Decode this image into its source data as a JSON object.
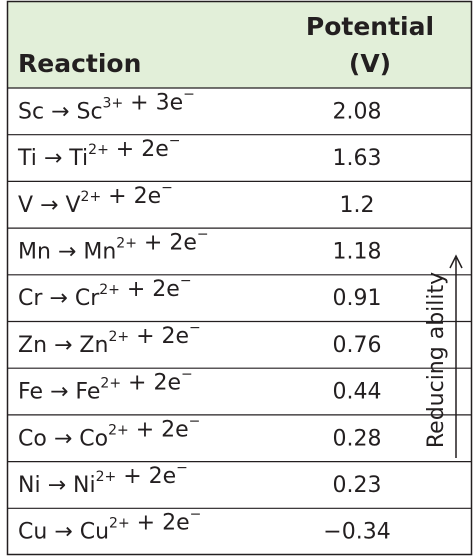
{
  "header": {
    "reaction": "Reaction",
    "potential": [
      "Potential",
      "(V)"
    ]
  },
  "side_label": "Reducing ability",
  "table": {
    "rows": [
      {
        "reaction": [
          {
            "text": "Sc → Sc"
          },
          {
            "sup": "3+"
          },
          {
            "text": " + 3e"
          },
          {
            "sup": "−"
          }
        ],
        "potential": "2.08"
      },
      {
        "reaction": [
          {
            "text": "Ti → Ti"
          },
          {
            "sup": "2+"
          },
          {
            "text": " + 2e"
          },
          {
            "sup": "−"
          }
        ],
        "potential": "1.63"
      },
      {
        "reaction": [
          {
            "text": "V → V"
          },
          {
            "sup": "2+"
          },
          {
            "text": " + 2e"
          },
          {
            "sup": "−"
          }
        ],
        "potential": "1.2"
      },
      {
        "reaction": [
          {
            "text": "Mn → Mn"
          },
          {
            "sup": "2+"
          },
          {
            "text": " + 2e"
          },
          {
            "sup": "−"
          }
        ],
        "potential": "1.18"
      },
      {
        "reaction": [
          {
            "text": "Cr → Cr"
          },
          {
            "sup": "2+"
          },
          {
            "text": " + 2e"
          },
          {
            "sup": "−"
          }
        ],
        "potential": "0.91"
      },
      {
        "reaction": [
          {
            "text": "Zn → Zn"
          },
          {
            "sup": "2+"
          },
          {
            "text": " + 2e"
          },
          {
            "sup": "−"
          }
        ],
        "potential": "0.76"
      },
      {
        "reaction": [
          {
            "text": "Fe → Fe"
          },
          {
            "sup": "2+"
          },
          {
            "text": " + 2e"
          },
          {
            "sup": "−"
          }
        ],
        "potential": "0.44"
      },
      {
        "reaction": [
          {
            "text": "Co → Co"
          },
          {
            "sup": "2+"
          },
          {
            "text": " + 2e"
          },
          {
            "sup": "−"
          }
        ],
        "potential": "0.28"
      },
      {
        "reaction": [
          {
            "text": "Ni → Ni"
          },
          {
            "sup": "2+"
          },
          {
            "text": " + 2e"
          },
          {
            "sup": "−"
          }
        ],
        "potential": "0.23"
      },
      {
        "reaction": [
          {
            "text": "Cu → Cu"
          },
          {
            "sup": "2+"
          },
          {
            "text": " + 2e"
          },
          {
            "sup": "−"
          }
        ],
        "potential": "−0.34"
      }
    ]
  }
}
